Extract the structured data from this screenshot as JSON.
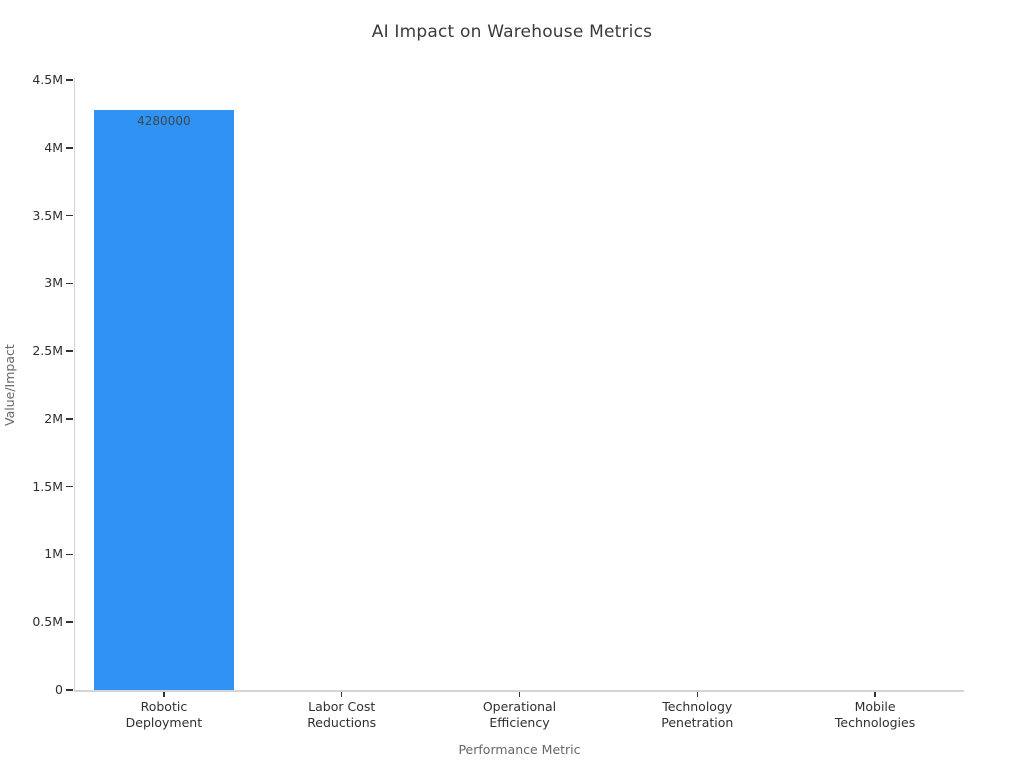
{
  "chart_data": {
    "type": "bar",
    "title": "AI Impact on Warehouse Metrics",
    "xlabel": "Performance Metric",
    "ylabel": "Value/Impact",
    "categories": [
      "Robotic\nDeployment",
      "Labor Cost\nReductions",
      "Operational\nEfficiency",
      "Technology\nPenetration",
      "Mobile\nTechnologies"
    ],
    "values": [
      4280000,
      0,
      0,
      0,
      0
    ],
    "bar_labels": [
      "4280000",
      "",
      "",
      "",
      ""
    ],
    "ylim": [
      0,
      4500000
    ],
    "yticks": [
      {
        "value": 0,
        "label": "0"
      },
      {
        "value": 500000,
        "label": "0.5M"
      },
      {
        "value": 1000000,
        "label": "1M"
      },
      {
        "value": 1500000,
        "label": "1.5M"
      },
      {
        "value": 2000000,
        "label": "2M"
      },
      {
        "value": 2500000,
        "label": "2.5M"
      },
      {
        "value": 3000000,
        "label": "3M"
      },
      {
        "value": 3500000,
        "label": "3.5M"
      },
      {
        "value": 4000000,
        "label": "4M"
      },
      {
        "value": 4500000,
        "label": "4.5M"
      }
    ],
    "grid": false,
    "legend": "none",
    "colors": {
      "bar": "#2e93f5",
      "axis_line": "#d4d4d4",
      "tick_mark": "#333333",
      "tick_label": "#2f2f2f",
      "axis_title": "#666666",
      "title": "#3a3a3a",
      "bar_label": "#40464d",
      "background": "#ffffff"
    }
  }
}
